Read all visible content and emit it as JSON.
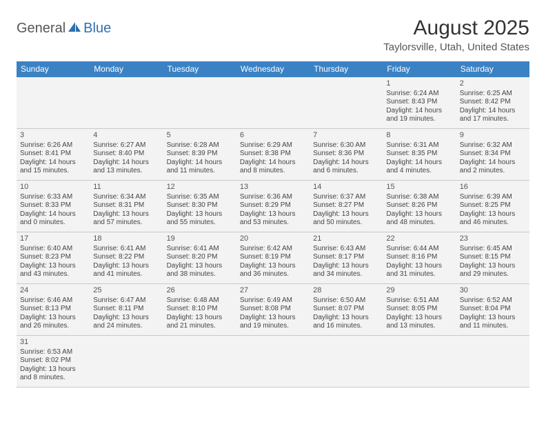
{
  "brand": {
    "part1": "General",
    "part2": "Blue"
  },
  "title": "August 2025",
  "location": "Taylorsville, Utah, United States",
  "colors": {
    "header_bg": "#3b82c4",
    "header_text": "#ffffff",
    "cell_bg": "#f3f3f3",
    "row_divider": "#3b82c4",
    "text": "#444444"
  },
  "weekdays": [
    "Sunday",
    "Monday",
    "Tuesday",
    "Wednesday",
    "Thursday",
    "Friday",
    "Saturday"
  ],
  "weeks": [
    [
      null,
      null,
      null,
      null,
      null,
      {
        "d": "1",
        "sr": "Sunrise: 6:24 AM",
        "ss": "Sunset: 8:43 PM",
        "dl": "Daylight: 14 hours and 19 minutes."
      },
      {
        "d": "2",
        "sr": "Sunrise: 6:25 AM",
        "ss": "Sunset: 8:42 PM",
        "dl": "Daylight: 14 hours and 17 minutes."
      }
    ],
    [
      {
        "d": "3",
        "sr": "Sunrise: 6:26 AM",
        "ss": "Sunset: 8:41 PM",
        "dl": "Daylight: 14 hours and 15 minutes."
      },
      {
        "d": "4",
        "sr": "Sunrise: 6:27 AM",
        "ss": "Sunset: 8:40 PM",
        "dl": "Daylight: 14 hours and 13 minutes."
      },
      {
        "d": "5",
        "sr": "Sunrise: 6:28 AM",
        "ss": "Sunset: 8:39 PM",
        "dl": "Daylight: 14 hours and 11 minutes."
      },
      {
        "d": "6",
        "sr": "Sunrise: 6:29 AM",
        "ss": "Sunset: 8:38 PM",
        "dl": "Daylight: 14 hours and 8 minutes."
      },
      {
        "d": "7",
        "sr": "Sunrise: 6:30 AM",
        "ss": "Sunset: 8:36 PM",
        "dl": "Daylight: 14 hours and 6 minutes."
      },
      {
        "d": "8",
        "sr": "Sunrise: 6:31 AM",
        "ss": "Sunset: 8:35 PM",
        "dl": "Daylight: 14 hours and 4 minutes."
      },
      {
        "d": "9",
        "sr": "Sunrise: 6:32 AM",
        "ss": "Sunset: 8:34 PM",
        "dl": "Daylight: 14 hours and 2 minutes."
      }
    ],
    [
      {
        "d": "10",
        "sr": "Sunrise: 6:33 AM",
        "ss": "Sunset: 8:33 PM",
        "dl": "Daylight: 14 hours and 0 minutes."
      },
      {
        "d": "11",
        "sr": "Sunrise: 6:34 AM",
        "ss": "Sunset: 8:31 PM",
        "dl": "Daylight: 13 hours and 57 minutes."
      },
      {
        "d": "12",
        "sr": "Sunrise: 6:35 AM",
        "ss": "Sunset: 8:30 PM",
        "dl": "Daylight: 13 hours and 55 minutes."
      },
      {
        "d": "13",
        "sr": "Sunrise: 6:36 AM",
        "ss": "Sunset: 8:29 PM",
        "dl": "Daylight: 13 hours and 53 minutes."
      },
      {
        "d": "14",
        "sr": "Sunrise: 6:37 AM",
        "ss": "Sunset: 8:27 PM",
        "dl": "Daylight: 13 hours and 50 minutes."
      },
      {
        "d": "15",
        "sr": "Sunrise: 6:38 AM",
        "ss": "Sunset: 8:26 PM",
        "dl": "Daylight: 13 hours and 48 minutes."
      },
      {
        "d": "16",
        "sr": "Sunrise: 6:39 AM",
        "ss": "Sunset: 8:25 PM",
        "dl": "Daylight: 13 hours and 46 minutes."
      }
    ],
    [
      {
        "d": "17",
        "sr": "Sunrise: 6:40 AM",
        "ss": "Sunset: 8:23 PM",
        "dl": "Daylight: 13 hours and 43 minutes."
      },
      {
        "d": "18",
        "sr": "Sunrise: 6:41 AM",
        "ss": "Sunset: 8:22 PM",
        "dl": "Daylight: 13 hours and 41 minutes."
      },
      {
        "d": "19",
        "sr": "Sunrise: 6:41 AM",
        "ss": "Sunset: 8:20 PM",
        "dl": "Daylight: 13 hours and 38 minutes."
      },
      {
        "d": "20",
        "sr": "Sunrise: 6:42 AM",
        "ss": "Sunset: 8:19 PM",
        "dl": "Daylight: 13 hours and 36 minutes."
      },
      {
        "d": "21",
        "sr": "Sunrise: 6:43 AM",
        "ss": "Sunset: 8:17 PM",
        "dl": "Daylight: 13 hours and 34 minutes."
      },
      {
        "d": "22",
        "sr": "Sunrise: 6:44 AM",
        "ss": "Sunset: 8:16 PM",
        "dl": "Daylight: 13 hours and 31 minutes."
      },
      {
        "d": "23",
        "sr": "Sunrise: 6:45 AM",
        "ss": "Sunset: 8:15 PM",
        "dl": "Daylight: 13 hours and 29 minutes."
      }
    ],
    [
      {
        "d": "24",
        "sr": "Sunrise: 6:46 AM",
        "ss": "Sunset: 8:13 PM",
        "dl": "Daylight: 13 hours and 26 minutes."
      },
      {
        "d": "25",
        "sr": "Sunrise: 6:47 AM",
        "ss": "Sunset: 8:11 PM",
        "dl": "Daylight: 13 hours and 24 minutes."
      },
      {
        "d": "26",
        "sr": "Sunrise: 6:48 AM",
        "ss": "Sunset: 8:10 PM",
        "dl": "Daylight: 13 hours and 21 minutes."
      },
      {
        "d": "27",
        "sr": "Sunrise: 6:49 AM",
        "ss": "Sunset: 8:08 PM",
        "dl": "Daylight: 13 hours and 19 minutes."
      },
      {
        "d": "28",
        "sr": "Sunrise: 6:50 AM",
        "ss": "Sunset: 8:07 PM",
        "dl": "Daylight: 13 hours and 16 minutes."
      },
      {
        "d": "29",
        "sr": "Sunrise: 6:51 AM",
        "ss": "Sunset: 8:05 PM",
        "dl": "Daylight: 13 hours and 13 minutes."
      },
      {
        "d": "30",
        "sr": "Sunrise: 6:52 AM",
        "ss": "Sunset: 8:04 PM",
        "dl": "Daylight: 13 hours and 11 minutes."
      }
    ],
    [
      {
        "d": "31",
        "sr": "Sunrise: 6:53 AM",
        "ss": "Sunset: 8:02 PM",
        "dl": "Daylight: 13 hours and 8 minutes."
      },
      null,
      null,
      null,
      null,
      null,
      null
    ]
  ]
}
